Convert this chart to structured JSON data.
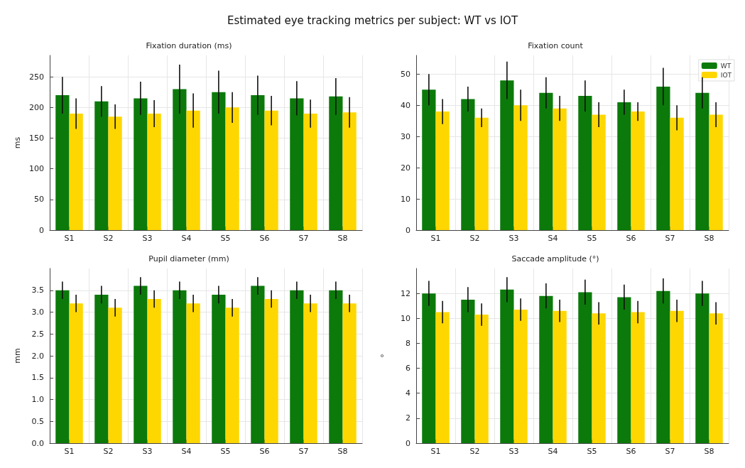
{
  "chart_data": [
    {
      "type": "bar",
      "title": "Fixation duration (ms)",
      "ylabel": "ms",
      "annotations": [
        "Estimated eye tracking metrics per subject: WT vs IOT"
      ],
      "categories": [
        "S1",
        "S2",
        "S3",
        "S4",
        "S5",
        "S6",
        "S7",
        "S8"
      ],
      "ylim": [
        0,
        285
      ],
      "yticks": [
        0,
        50,
        100,
        150,
        200,
        250
      ],
      "grid": true,
      "series": [
        {
          "color": "#0b7a0b",
          "values": [
            220,
            210,
            215,
            230,
            225,
            220,
            215,
            218
          ],
          "errors": [
            30,
            25,
            27,
            40,
            35,
            32,
            28,
            30
          ]
        },
        {
          "color": "#ffd700",
          "values": [
            190,
            185,
            190,
            195,
            200,
            195,
            190,
            192
          ],
          "errors": [
            25,
            20,
            22,
            28,
            25,
            24,
            23,
            25
          ]
        }
      ]
    },
    {
      "type": "bar",
      "title": "Fixation count",
      "categories": [
        "S1",
        "S2",
        "S3",
        "S4",
        "S5",
        "S6",
        "S7",
        "S8"
      ],
      "ylim": [
        0,
        56
      ],
      "yticks": [
        0,
        10,
        20,
        30,
        40,
        50
      ],
      "grid": true,
      "legend": "top right",
      "series": [
        {
          "name": "WT",
          "color": "#0b7a0b",
          "values": [
            45,
            42,
            48,
            44,
            43,
            41,
            46,
            44
          ],
          "errors": [
            5,
            4,
            6,
            5,
            5,
            4,
            6,
            5
          ]
        },
        {
          "name": "IOT",
          "color": "#ffd700",
          "values": [
            38,
            36,
            40,
            39,
            37,
            38,
            36,
            37
          ],
          "errors": [
            4,
            3,
            5,
            4,
            4,
            3,
            4,
            4
          ]
        }
      ]
    },
    {
      "type": "bar",
      "title": "Pupil diameter (mm)",
      "ylabel": "mm",
      "categories": [
        "S1",
        "S2",
        "S3",
        "S4",
        "S5",
        "S6",
        "S7",
        "S8"
      ],
      "ylim": [
        0,
        4
      ],
      "yticks": [
        {
          "value": 0,
          "label": "0.0"
        },
        0.5,
        {
          "value": 1,
          "label": "1.0"
        },
        1.5,
        {
          "value": 2,
          "label": "2.0"
        },
        2.5,
        {
          "value": 3,
          "label": "3.0"
        },
        3.5
      ],
      "grid": true,
      "series": [
        {
          "color": "#0b7a0b",
          "values": [
            3.5,
            3.4,
            3.6,
            3.5,
            3.4,
            3.6,
            3.5,
            3.5
          ],
          "errors": [
            0.2,
            0.2,
            0.2,
            0.2,
            0.2,
            0.2,
            0.2,
            0.2
          ]
        },
        {
          "color": "#ffd700",
          "values": [
            3.2,
            3.1,
            3.3,
            3.2,
            3.1,
            3.3,
            3.2,
            3.2
          ],
          "errors": [
            0.2,
            0.2,
            0.2,
            0.2,
            0.2,
            0.2,
            0.2,
            0.2
          ]
        }
      ]
    },
    {
      "type": "bar",
      "title": "Saccade amplitude (°)",
      "ylabel": "°",
      "categories": [
        "S1",
        "S2",
        "S3",
        "S4",
        "S5",
        "S6",
        "S7",
        "S8"
      ],
      "ylim": [
        0,
        14
      ],
      "yticks": [
        0,
        2,
        4,
        6,
        8,
        10,
        12
      ],
      "grid": true,
      "series": [
        {
          "color": "#0b7a0b",
          "values": [
            12,
            11.5,
            12.3,
            11.8,
            12.1,
            11.7,
            12.2,
            12
          ],
          "errors": [
            1,
            1,
            1,
            1,
            1,
            1,
            1,
            1
          ]
        },
        {
          "color": "#ffd700",
          "values": [
            10.5,
            10.3,
            10.7,
            10.6,
            10.4,
            10.5,
            10.6,
            10.4
          ],
          "errors": [
            0.9,
            0.9,
            0.9,
            0.9,
            0.9,
            0.9,
            0.9,
            0.9
          ]
        }
      ]
    }
  ]
}
